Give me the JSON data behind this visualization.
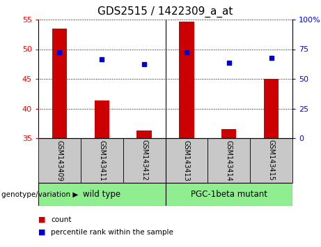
{
  "title": "GDS2515 / 1422309_a_at",
  "samples": [
    "GSM143409",
    "GSM143411",
    "GSM143412",
    "GSM143413",
    "GSM143414",
    "GSM143415"
  ],
  "bar_values": [
    53.5,
    41.3,
    36.3,
    54.7,
    36.5,
    45.0
  ],
  "percentile_values": [
    49.5,
    48.3,
    47.5,
    49.5,
    47.7,
    48.5
  ],
  "bar_color": "#cc0000",
  "dot_color": "#0000cc",
  "ylim_left": [
    35,
    55
  ],
  "ylim_right": [
    0,
    100
  ],
  "yticks_left": [
    35,
    40,
    45,
    50,
    55
  ],
  "ytick_labels_left": [
    "35",
    "40",
    "45",
    "50",
    "55"
  ],
  "ytick_labels_right": [
    "0",
    "25",
    "50",
    "75",
    "100%"
  ],
  "groups": [
    {
      "label": "wild type",
      "color": "#90ee90"
    },
    {
      "label": "PGC-1beta mutant",
      "color": "#90ee90"
    }
  ],
  "group_label_prefix": "genotype/variation",
  "legend_count_label": "count",
  "legend_pct_label": "percentile rank within the sample",
  "label_area_bg": "#c8c8c8",
  "group_area_bg": "#90ee90",
  "title_fontsize": 11,
  "tick_fontsize": 8,
  "sample_fontsize": 7,
  "group_fontsize": 8.5,
  "legend_fontsize": 7.5,
  "geno_label_fontsize": 7.5
}
